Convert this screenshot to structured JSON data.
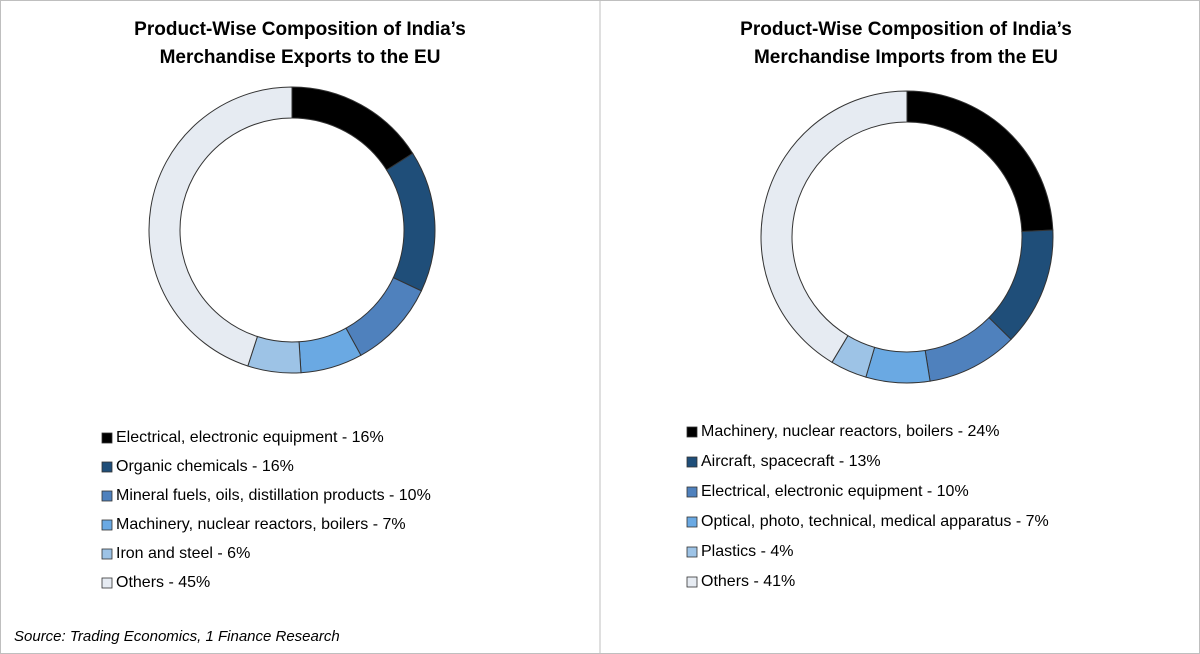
{
  "chart_data": [
    {
      "type": "donut",
      "title": "Product-Wise Composition of India’s Merchandise Exports to the EU",
      "categories": [
        "Electrical, electronic equipment - 16%",
        "Organic chemicals - 16%",
        "Mineral fuels, oils, distillation products - 10%",
        "Machinery, nuclear reactors, boilers - 7%",
        "Iron and steel - 6%",
        "Others - 45%"
      ],
      "values": [
        16,
        16,
        10,
        7,
        6,
        45
      ],
      "colors": [
        "#000000",
        "#1f4e79",
        "#4f81bd",
        "#6aa9e3",
        "#9dc3e6",
        "#e6ebf2"
      ]
    },
    {
      "type": "donut",
      "title": "Product-Wise Composition of India’s Merchandise Imports from the EU",
      "categories": [
        "Machinery, nuclear reactors, boilers - 24%",
        "Aircraft, spacecraft - 13%",
        "Electrical, electronic equipment - 10%",
        "Optical, photo, technical, medical apparatus - 7%",
        "Plastics - 4%",
        "Others - 41%"
      ],
      "values": [
        24,
        13,
        10,
        7,
        4,
        41
      ],
      "colors": [
        "#000000",
        "#1f4e79",
        "#4f81bd",
        "#6aa9e3",
        "#9dc3e6",
        "#e6ebf2"
      ]
    }
  ],
  "source": "Source: Trading Economics, 1 Finance Research"
}
